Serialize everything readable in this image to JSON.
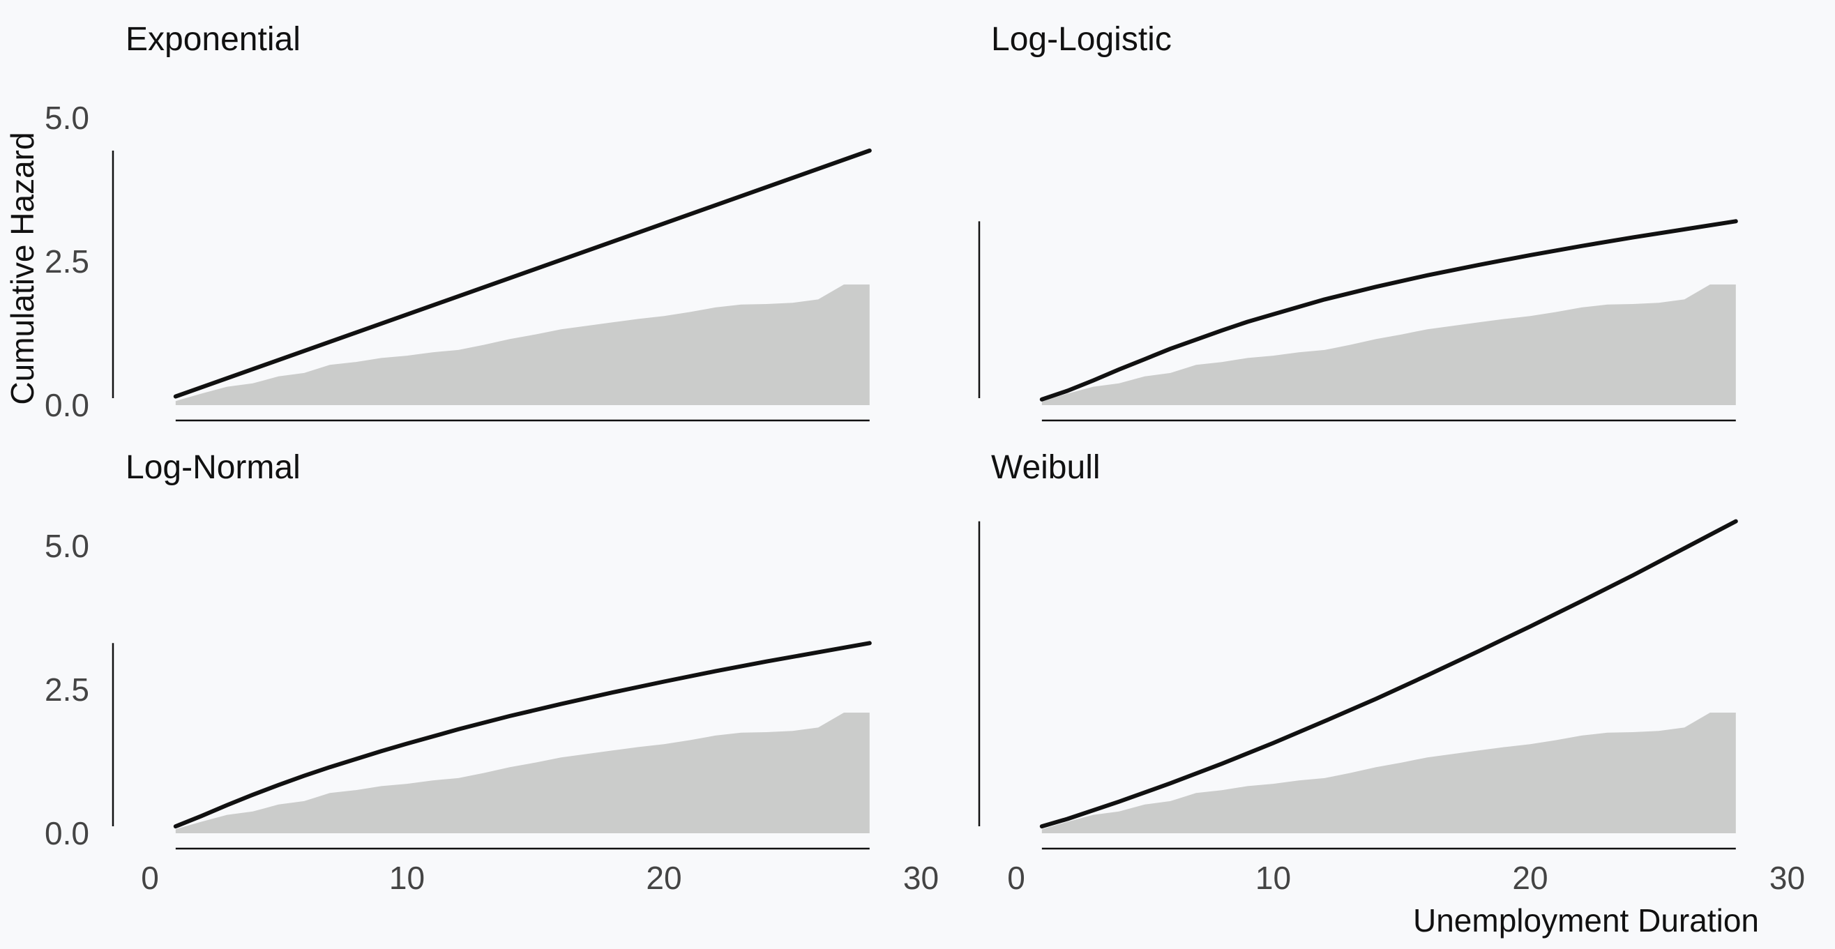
{
  "chart_data": {
    "type": "area",
    "layout": "facet-grid 2x2",
    "ylabel": "Cumulative Hazard",
    "xlabel": "Unemployment Duration",
    "xlim": [
      0,
      30
    ],
    "ylim": [
      0,
      5
    ],
    "xticks": [
      "0",
      "10",
      "20",
      "30"
    ],
    "yticks": [
      "0.0",
      "2.5",
      "5.0"
    ],
    "grid": false,
    "colors": {
      "curve": "#111111",
      "empirical_fill": "#cbcccb",
      "background": "#f8f9fb"
    },
    "empirical": {
      "x": [
        1,
        2,
        3,
        4,
        5,
        6,
        7,
        8,
        9,
        10,
        11,
        12,
        13,
        14,
        15,
        16,
        17,
        18,
        19,
        20,
        21,
        22,
        23,
        24,
        25,
        26,
        27,
        28
      ],
      "y": [
        0.07,
        0.2,
        0.32,
        0.38,
        0.5,
        0.56,
        0.7,
        0.75,
        0.82,
        0.86,
        0.92,
        0.96,
        1.05,
        1.15,
        1.23,
        1.32,
        1.38,
        1.44,
        1.5,
        1.55,
        1.62,
        1.7,
        1.75,
        1.76,
        1.78,
        1.84,
        2.1,
        2.1
      ]
    },
    "panels": [
      {
        "title": "Exponential",
        "x": [
          1,
          28
        ],
        "y": [
          0.15,
          4.43
        ]
      },
      {
        "title": "Log-Logistic",
        "x": [
          1,
          2,
          3,
          4,
          5,
          6,
          7,
          8,
          9,
          10,
          12,
          14,
          16,
          18,
          20,
          22,
          24,
          26,
          28
        ],
        "y": [
          0.1,
          0.25,
          0.43,
          0.62,
          0.8,
          0.98,
          1.14,
          1.3,
          1.45,
          1.58,
          1.84,
          2.06,
          2.26,
          2.44,
          2.61,
          2.77,
          2.92,
          3.06,
          3.2
        ]
      },
      {
        "title": "Log-Normal",
        "x": [
          1,
          2,
          3,
          4,
          5,
          6,
          7,
          8,
          9,
          10,
          12,
          14,
          16,
          18,
          20,
          22,
          24,
          26,
          28
        ],
        "y": [
          0.12,
          0.3,
          0.49,
          0.67,
          0.84,
          1.0,
          1.15,
          1.29,
          1.43,
          1.56,
          1.81,
          2.04,
          2.25,
          2.45,
          2.64,
          2.82,
          2.99,
          3.15,
          3.31
        ]
      },
      {
        "title": "Weibull",
        "x": [
          1,
          2,
          4,
          6,
          8,
          10,
          12,
          14,
          16,
          18,
          20,
          22,
          24,
          26,
          28
        ],
        "y": [
          0.12,
          0.25,
          0.55,
          0.87,
          1.21,
          1.57,
          1.95,
          2.34,
          2.75,
          3.17,
          3.6,
          4.04,
          4.49,
          4.96,
          5.43
        ]
      }
    ]
  }
}
